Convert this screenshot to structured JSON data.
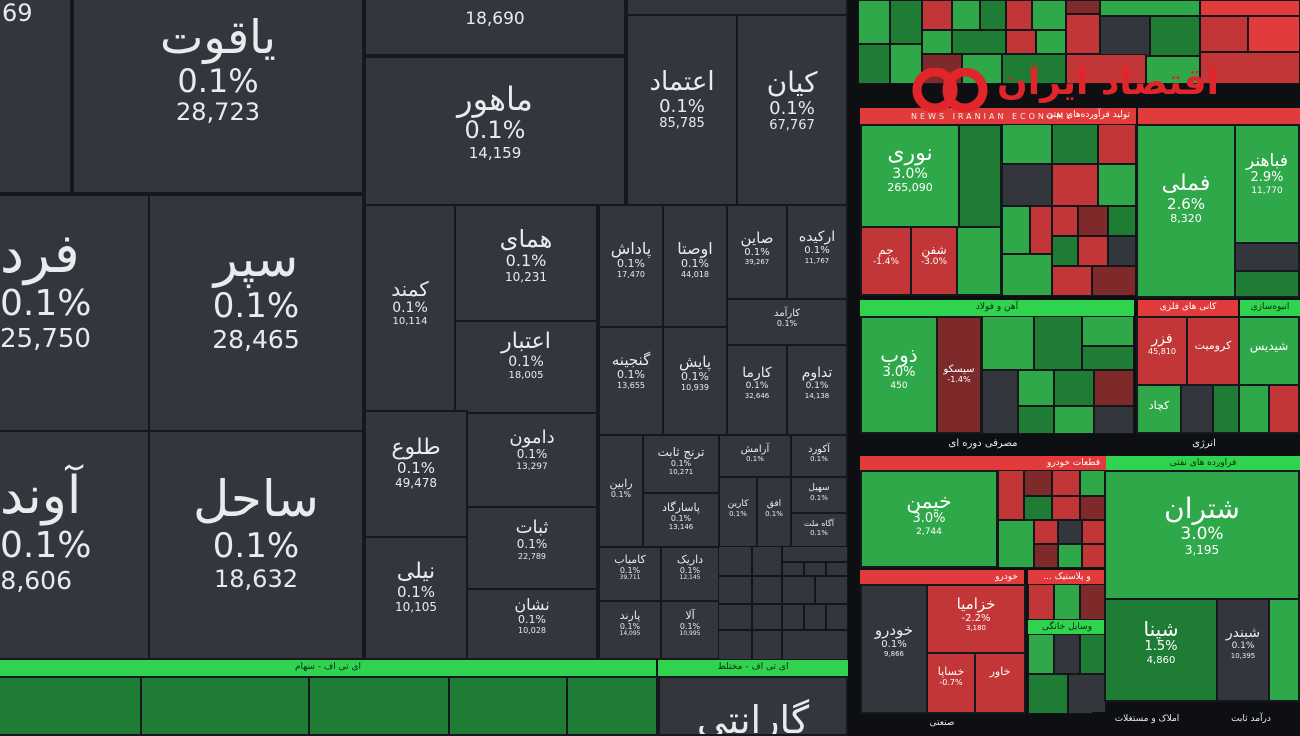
{
  "left_panel": {
    "tiles": [
      {
        "id": "t_69",
        "sym": "",
        "pct": "",
        "vol": "69"
      },
      {
        "id": "yaghoot",
        "sym": "یاقوت",
        "pct": "0.1%",
        "vol": "28,723"
      },
      {
        "id": "top_1",
        "sym": "",
        "pct": "",
        "vol": "18,690"
      },
      {
        "id": "fard",
        "sym": "فرد",
        "pct": "0.1%",
        "vol": "25,750"
      },
      {
        "id": "separ",
        "sym": "سپر",
        "pct": "0.1%",
        "vol": "28,465"
      },
      {
        "id": "avand",
        "sym": "آوند",
        "pct": "0.1%",
        "vol": "8,606"
      },
      {
        "id": "sahel",
        "sym": "ساحل",
        "pct": "0.1%",
        "vol": "18,632"
      },
      {
        "id": "maahoor",
        "sym": "ماهور",
        "pct": "0.1%",
        "vol": "14,159"
      },
      {
        "id": "etemad",
        "sym": "اعتماد",
        "pct": "0.1%",
        "vol": "85,785"
      },
      {
        "id": "kian",
        "sym": "کیان",
        "pct": "0.1%",
        "vol": "67,767"
      },
      {
        "id": "kamand",
        "sym": "کمند",
        "pct": "0.1%",
        "vol": "10,114"
      },
      {
        "id": "hamay",
        "sym": "همای",
        "pct": "0.1%",
        "vol": "10,231"
      },
      {
        "id": "padash",
        "sym": "پاداش",
        "pct": "0.1%",
        "vol": "17,470"
      },
      {
        "id": "oosta",
        "sym": "اوصتا",
        "pct": "0.1%",
        "vol": "44,018"
      },
      {
        "id": "saeen",
        "sym": "صاین",
        "pct": "0.1%",
        "vol": "39,267"
      },
      {
        "id": "arkide",
        "sym": "ارکیده",
        "pct": "0.1%",
        "vol": "11,767"
      },
      {
        "id": "karamd",
        "sym": "کارآمد",
        "pct": "0.1%",
        "vol": ""
      },
      {
        "id": "etebar",
        "sym": "اعتبار",
        "pct": "0.1%",
        "vol": "18,005"
      },
      {
        "id": "ganjine",
        "sym": "گنجینه",
        "pct": "0.1%",
        "vol": "13,655"
      },
      {
        "id": "payesh",
        "sym": "پایش",
        "pct": "0.1%",
        "vol": "10,939"
      },
      {
        "id": "karma",
        "sym": "کارما",
        "pct": "0.1%",
        "vol": "32,646"
      },
      {
        "id": "tadavom",
        "sym": "تداوم",
        "pct": "0.1%",
        "vol": "14,138"
      },
      {
        "id": "tolou",
        "sym": "طلوع",
        "pct": "0.1%",
        "vol": "49,478"
      },
      {
        "id": "damoon",
        "sym": "دامون",
        "pct": "0.1%",
        "vol": "13,297"
      },
      {
        "id": "rabin",
        "sym": "رابین",
        "pct": "0.1%",
        "vol": ""
      },
      {
        "id": "taranj",
        "sym": "ترنج ثابت",
        "pct": "0.1%",
        "vol": "10,271"
      },
      {
        "id": "aramesh",
        "sym": "آرامش",
        "pct": "0.1%",
        "vol": ""
      },
      {
        "id": "akord",
        "sym": "آکورد",
        "pct": "0.1%",
        "vol": ""
      },
      {
        "id": "pasargad",
        "sym": "پاسارگاد",
        "pct": "0.1%",
        "vol": "13,146"
      },
      {
        "id": "karin",
        "sym": "کارین",
        "pct": "0.1%",
        "vol": ""
      },
      {
        "id": "ofogh",
        "sym": "افق",
        "pct": "0.1%",
        "vol": ""
      },
      {
        "id": "sehil",
        "sym": "سهیل",
        "pct": "0.1%",
        "vol": ""
      },
      {
        "id": "agah",
        "sym": "آگاه ملت",
        "pct": "0.1%",
        "vol": ""
      },
      {
        "id": "sabat",
        "sym": "ثبات",
        "pct": "0.1%",
        "vol": "22,789"
      },
      {
        "id": "nili",
        "sym": "نیلی",
        "pct": "0.1%",
        "vol": "10,105"
      },
      {
        "id": "neshan",
        "sym": "نشان",
        "pct": "0.1%",
        "vol": "10,028"
      },
      {
        "id": "kamyab",
        "sym": "کامیاب",
        "pct": "0.1%",
        "vol": "39,711"
      },
      {
        "id": "darik",
        "sym": "داریک",
        "pct": "0.1%",
        "vol": "12,145"
      },
      {
        "id": "parand",
        "sym": "پارند",
        "pct": "0.1%",
        "vol": "14,095"
      },
      {
        "id": "ala",
        "sym": "آلا",
        "pct": "0.1%",
        "vol": "10,995"
      },
      {
        "id": "garanti",
        "sym": "گارانتی",
        "pct": "",
        "vol": ""
      }
    ],
    "band_left": "ای تی اف - سهام",
    "band_right": "ای تی اف - مختلط"
  },
  "right_panel": {
    "sector_headers": {
      "s1": "... مرتبط با اوراق بهادار",
      "s2": "بیمه",
      "s3": "تولید فرآورده‌های نفتی",
      "s4": "آهن و فولاد",
      "s5": "کانی های فلزی",
      "s6": "انبوه‌سازی",
      "s7": "مصرفی دوره ای",
      "s8": "انرژی",
      "s9": "قطعات خودرو",
      "s10": "فراورده های نفتی",
      "s11": "خودرو",
      "s12": "... و پلاستیک",
      "s13": "وسایل خانگی",
      "s14": "صنعتی",
      "s15": "املاک و مستغلات",
      "s16": "درآمد ثابت"
    },
    "tiles": [
      {
        "id": "noori",
        "sym": "نوری",
        "pct": "3.0%",
        "vol": "265,090",
        "color": "green"
      },
      {
        "id": "fameli",
        "sym": "فملی",
        "pct": "2.6%",
        "vol": "8,320",
        "color": "green"
      },
      {
        "id": "ghabahonar",
        "sym": "فباهنر",
        "pct": "2.9%",
        "vol": "11,770",
        "color": "green"
      },
      {
        "id": "zob",
        "sym": "ذوب",
        "pct": "3.0%",
        "vol": "450",
        "color": "green"
      },
      {
        "id": "khimen",
        "sym": "خیمن",
        "pct": "3.0%",
        "vol": "2,744",
        "color": "green"
      },
      {
        "id": "shetran",
        "sym": "شتران",
        "pct": "3.0%",
        "vol": "3,195",
        "color": "green"
      },
      {
        "id": "khodro",
        "sym": "خودرو",
        "pct": "0.1%",
        "vol": "9,866",
        "color": "dark"
      },
      {
        "id": "khazamia",
        "sym": "خزامیا",
        "pct": "-2.2%",
        "vol": "3,180",
        "color": "red"
      },
      {
        "id": "shepna",
        "sym": "شپنا",
        "pct": "1.5%",
        "vol": "4,860",
        "color": "green"
      },
      {
        "id": "shebandar",
        "sym": "شبندر",
        "pct": "0.1%",
        "vol": "10,395",
        "color": "dark"
      },
      {
        "id": "jam",
        "sym": "جم",
        "pct": "-1.4%",
        "vol": "",
        "color": "red"
      },
      {
        "id": "shafan",
        "sym": "شفن",
        "pct": "-3.0%",
        "vol": "",
        "color": "red"
      },
      {
        "id": "seskom",
        "sym": "سیسکو",
        "pct": "-1.4%",
        "vol": "",
        "color": "red"
      },
      {
        "id": "fazar",
        "sym": "فزر",
        "pct": "",
        "vol": "45,810",
        "color": "red"
      },
      {
        "id": "kromit",
        "sym": "کرومیت",
        "pct": "",
        "vol": "",
        "color": "red"
      },
      {
        "id": "shidis",
        "sym": "شیدیس",
        "pct": "",
        "vol": "",
        "color": "green"
      },
      {
        "id": "kachad",
        "sym": "کچاد",
        "pct": "",
        "vol": "",
        "color": "green"
      },
      {
        "id": "khasapa",
        "sym": "خساپا",
        "pct": "-0.7%",
        "vol": "",
        "color": "red"
      },
      {
        "id": "khavar",
        "sym": "خاور",
        "pct": "",
        "vol": "",
        "color": "red"
      }
    ],
    "small_symbols": [
      "کالا",
      "فرابورس",
      "وسخا",
      "پارس",
      "شکویر",
      "شپنا",
      "شیراز",
      "شاوان",
      "مارون",
      "فولاد",
      "فخوز",
      "کاوه",
      "هرمز",
      "کگل",
      "تکشا",
      "پلاسک",
      "پاکشو",
      "بترانس",
      "وبملت",
      "ونوین",
      "کرمان",
      "شسپا",
      "شتهران",
      "غبهار",
      "لبوتان",
      "پترول",
      "امین",
      "اتکام"
    ],
    "logo_text": "اقتصاد ایران",
    "logo_subtext": "NEWS  IRANIAN  ECONOMY"
  },
  "colors": {
    "dark_tile": "#33373d",
    "green": "#2fa84a",
    "dark_green": "#1f7c34",
    "red": "#c23637",
    "dark_red": "#7e2a2a",
    "band_green": "#2fd34d",
    "logo_red": "#e1262b"
  }
}
